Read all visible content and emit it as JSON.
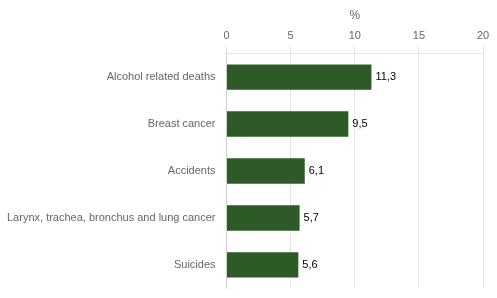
{
  "chart_data": {
    "type": "bar",
    "orientation": "horizontal",
    "categories": [
      "Suicides",
      "Larynx, trachea, bronchus and lung cancer",
      "Accidents",
      "Breast cancer",
      "Alcohol related deaths"
    ],
    "values": [
      5.6,
      5.7,
      6.1,
      9.5,
      11.3
    ],
    "value_labels": [
      "5,6",
      "5,7",
      "6,1",
      "9,5",
      "11,3"
    ],
    "data_labels": true,
    "color": "#2d5a27",
    "xlabel": "%",
    "xlim": [
      0,
      20
    ],
    "xticks": [
      0,
      5,
      10,
      15,
      20
    ],
    "grid": true
  }
}
